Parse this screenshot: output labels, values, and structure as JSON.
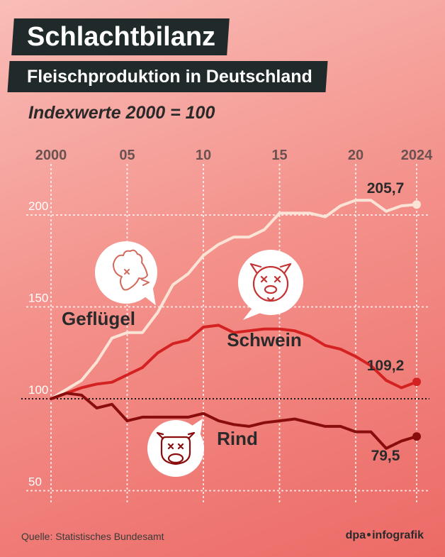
{
  "title": "Schlachtbilanz",
  "subtitle": "Fleischproduktion in Deutschland",
  "index_note": "Indexwerte 2000 = 100",
  "source": "Quelle: Statistisches Bundesamt",
  "logo": {
    "left": "dpa",
    "right": "infografik"
  },
  "colors": {
    "gefluegel": "#fbe4d6",
    "schwein": "#d42222",
    "rind": "#8a0d0d",
    "text": "#2a2a2a"
  },
  "icons": [
    "chicken-icon",
    "pig-icon",
    "cow-icon"
  ],
  "chart_data": {
    "type": "line",
    "title": "",
    "x_tick_labels": [
      "2000",
      "05",
      "10",
      "15",
      "20",
      "2024"
    ],
    "x_tick_values": [
      2000,
      2005,
      2010,
      2015,
      2020,
      2024
    ],
    "y_ticks": [
      50,
      100,
      150,
      200
    ],
    "y_tick_labels": [
      "50",
      "100",
      "150",
      "200"
    ],
    "xlim": [
      2000,
      2024
    ],
    "ylim": [
      45,
      225
    ],
    "baseline": 100,
    "grid": true,
    "x": [
      2000,
      2001,
      2002,
      2003,
      2004,
      2005,
      2006,
      2007,
      2008,
      2009,
      2010,
      2011,
      2012,
      2013,
      2014,
      2015,
      2016,
      2017,
      2018,
      2019,
      2020,
      2021,
      2022,
      2023,
      2024
    ],
    "series": [
      {
        "name": "Geflügel",
        "key": "gefluegel",
        "values": [
          100,
          105,
          110,
          120,
          133,
          136,
          136,
          147,
          162,
          168,
          178,
          184,
          188,
          188,
          192,
          201,
          201,
          201,
          199,
          205,
          208,
          208,
          202,
          205,
          205.7
        ],
        "end_label": "205,7"
      },
      {
        "name": "Schwein",
        "key": "schwein",
        "values": [
          100,
          103,
          106,
          108,
          109,
          113,
          117,
          125,
          130,
          132,
          139,
          140,
          136,
          137,
          138,
          138,
          137,
          134,
          129,
          127,
          123,
          118,
          110,
          106,
          109.2
        ],
        "end_label": "109,2"
      },
      {
        "name": "Rind",
        "key": "rind",
        "values": [
          100,
          103,
          102,
          95,
          97,
          88,
          90,
          90,
          90,
          90,
          92,
          88,
          86,
          85,
          87,
          88,
          89,
          87,
          85,
          85,
          82,
          82,
          73,
          77,
          79.5
        ],
        "end_label": "79,5"
      }
    ]
  }
}
